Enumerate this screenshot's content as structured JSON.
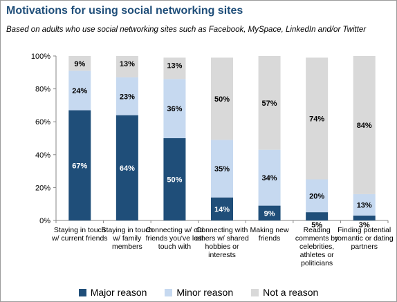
{
  "title": "Motivations for using social networking sites",
  "subtitle": "Based on adults who use social networking sites such as Facebook, MySpace,  LinkedIn and/or Twitter",
  "colors": {
    "major": "#1f4e79",
    "minor": "#c6d9f0",
    "not": "#d9d9d9",
    "title": "#1f4e79"
  },
  "chart_data": {
    "type": "bar",
    "stacked": true,
    "ylim": [
      0,
      100
    ],
    "yticks": [
      "0%",
      "20%",
      "40%",
      "60%",
      "80%",
      "100%"
    ],
    "categories": [
      "Staying in touch w/ current friends",
      "Staying in touch w/ family members",
      "Connecting w/ old friends you've lost touch with",
      "Connecting with others w/ shared hobbies or interests",
      "Making new friends",
      "Reading comments by celebrities, athletes or politicians",
      "Finding potential romantic or dating partners"
    ],
    "series": [
      {
        "name": "Major reason",
        "color": "#1f4e79",
        "values": [
          67,
          64,
          50,
          14,
          9,
          5,
          3
        ]
      },
      {
        "name": "Minor reason",
        "color": "#c6d9f0",
        "values": [
          24,
          23,
          36,
          35,
          34,
          20,
          13
        ]
      },
      {
        "name": "Not a reason",
        "color": "#d9d9d9",
        "values": [
          9,
          13,
          13,
          50,
          57,
          74,
          84
        ]
      }
    ],
    "legend": "bottom",
    "grid": false
  }
}
